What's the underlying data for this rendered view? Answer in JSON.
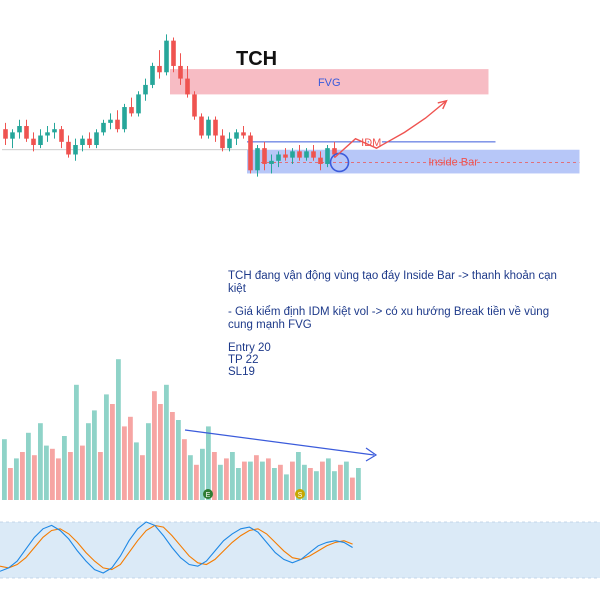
{
  "chart_data": {
    "type": "candlestick",
    "title": "TCH",
    "colors": {
      "up": "#26a69a",
      "down": "#ef5350",
      "fvg": "#f4a6b0",
      "inside_bar": "#9fb4f5",
      "annotation": "#3b5bdb",
      "arrow": "#ef5350",
      "stoch_k": "#1e88e5",
      "stoch_d": "#f57c00",
      "stoch_band": "#dbeaf7"
    },
    "ylim": [
      15.4,
      22.8
    ],
    "candles": [
      {
        "o": 19.6,
        "h": 19.8,
        "l": 19.1,
        "c": 19.3
      },
      {
        "o": 19.3,
        "h": 19.6,
        "l": 19.0,
        "c": 19.5
      },
      {
        "o": 19.5,
        "h": 19.9,
        "l": 19.3,
        "c": 19.7
      },
      {
        "o": 19.7,
        "h": 19.9,
        "l": 19.2,
        "c": 19.3
      },
      {
        "o": 19.3,
        "h": 19.5,
        "l": 18.9,
        "c": 19.1
      },
      {
        "o": 19.1,
        "h": 19.6,
        "l": 19.0,
        "c": 19.4
      },
      {
        "o": 19.4,
        "h": 19.7,
        "l": 19.2,
        "c": 19.5
      },
      {
        "o": 19.5,
        "h": 19.8,
        "l": 19.3,
        "c": 19.6
      },
      {
        "o": 19.6,
        "h": 19.7,
        "l": 19.0,
        "c": 19.2
      },
      {
        "o": 19.2,
        "h": 19.4,
        "l": 18.7,
        "c": 18.8
      },
      {
        "o": 18.8,
        "h": 19.3,
        "l": 18.6,
        "c": 19.1
      },
      {
        "o": 19.1,
        "h": 19.4,
        "l": 18.9,
        "c": 19.3
      },
      {
        "o": 19.3,
        "h": 19.5,
        "l": 19.0,
        "c": 19.1
      },
      {
        "o": 19.1,
        "h": 19.6,
        "l": 19.0,
        "c": 19.5
      },
      {
        "o": 19.5,
        "h": 19.9,
        "l": 19.4,
        "c": 19.8
      },
      {
        "o": 19.8,
        "h": 20.1,
        "l": 19.6,
        "c": 19.9
      },
      {
        "o": 19.9,
        "h": 20.2,
        "l": 19.5,
        "c": 19.6
      },
      {
        "o": 19.6,
        "h": 20.4,
        "l": 19.5,
        "c": 20.3
      },
      {
        "o": 20.3,
        "h": 20.6,
        "l": 20.0,
        "c": 20.1
      },
      {
        "o": 20.1,
        "h": 20.8,
        "l": 20.0,
        "c": 20.7
      },
      {
        "o": 20.7,
        "h": 21.2,
        "l": 20.5,
        "c": 21.0
      },
      {
        "o": 21.0,
        "h": 21.7,
        "l": 20.9,
        "c": 21.6
      },
      {
        "o": 21.6,
        "h": 22.1,
        "l": 21.2,
        "c": 21.4
      },
      {
        "o": 21.4,
        "h": 22.6,
        "l": 21.3,
        "c": 22.4
      },
      {
        "o": 22.4,
        "h": 22.5,
        "l": 21.4,
        "c": 21.6
      },
      {
        "o": 21.6,
        "h": 22.0,
        "l": 21.0,
        "c": 21.2
      },
      {
        "o": 21.2,
        "h": 21.6,
        "l": 20.6,
        "c": 20.7
      },
      {
        "o": 20.7,
        "h": 20.8,
        "l": 19.9,
        "c": 20.0
      },
      {
        "o": 20.0,
        "h": 20.1,
        "l": 19.3,
        "c": 19.4
      },
      {
        "o": 19.4,
        "h": 20.0,
        "l": 19.3,
        "c": 19.9
      },
      {
        "o": 19.9,
        "h": 20.0,
        "l": 19.2,
        "c": 19.4
      },
      {
        "o": 19.4,
        "h": 19.6,
        "l": 18.9,
        "c": 19.0
      },
      {
        "o": 19.0,
        "h": 19.5,
        "l": 18.9,
        "c": 19.3
      },
      {
        "o": 19.3,
        "h": 19.6,
        "l": 19.1,
        "c": 19.5
      },
      {
        "o": 19.5,
        "h": 19.7,
        "l": 19.3,
        "c": 19.4
      },
      {
        "o": 19.4,
        "h": 19.5,
        "l": 18.2,
        "c": 18.3
      },
      {
        "o": 18.3,
        "h": 19.1,
        "l": 18.1,
        "c": 19.0
      },
      {
        "o": 19.0,
        "h": 19.2,
        "l": 18.3,
        "c": 18.5
      },
      {
        "o": 18.5,
        "h": 18.8,
        "l": 18.2,
        "c": 18.6
      },
      {
        "o": 18.6,
        "h": 18.9,
        "l": 18.4,
        "c": 18.8
      },
      {
        "o": 18.8,
        "h": 19.0,
        "l": 18.6,
        "c": 18.7
      },
      {
        "o": 18.7,
        "h": 19.0,
        "l": 18.5,
        "c": 18.9
      },
      {
        "o": 18.9,
        "h": 19.1,
        "l": 18.6,
        "c": 18.7
      },
      {
        "o": 18.7,
        "h": 19.0,
        "l": 18.6,
        "c": 18.9
      },
      {
        "o": 18.9,
        "h": 19.1,
        "l": 18.6,
        "c": 18.7
      },
      {
        "o": 18.7,
        "h": 18.9,
        "l": 18.3,
        "c": 18.5
      },
      {
        "o": 18.5,
        "h": 19.1,
        "l": 18.4,
        "c": 19.0
      },
      {
        "o": 19.0,
        "h": 19.2,
        "l": 18.7,
        "c": 18.8
      }
    ],
    "zones": [
      {
        "name": "FVG",
        "label": "FVG",
        "y_low": 20.7,
        "y_high": 21.5,
        "from_index": 24,
        "to_index": 69
      },
      {
        "name": "Inside Bar",
        "label": "Inside Bar",
        "y_low": 18.2,
        "y_high": 18.95,
        "from_index": 35,
        "to_index": 82
      }
    ],
    "levels": [
      {
        "name": "IDM",
        "label": "IDM",
        "value": 19.2,
        "from_index": 35,
        "to_index": 70
      },
      {
        "name": "base",
        "label": "",
        "value": 18.95,
        "from_index": 0,
        "to_index": 35
      },
      {
        "name": "dashed",
        "label": "",
        "value": 18.55,
        "from_index": 37,
        "to_index": 82
      }
    ],
    "projection": [
      [
        47,
        18.7
      ],
      [
        50,
        19.3
      ],
      [
        53,
        19.0
      ],
      [
        57,
        19.5
      ],
      [
        60,
        19.95
      ],
      [
        63,
        20.5
      ]
    ],
    "volume": [
      38,
      20,
      26,
      30,
      42,
      28,
      48,
      34,
      32,
      26,
      40,
      30,
      72,
      34,
      48,
      56,
      30,
      66,
      60,
      88,
      46,
      52,
      36,
      28,
      48,
      68,
      60,
      72,
      55,
      50,
      38,
      28,
      22,
      32,
      46,
      30,
      22,
      26,
      30,
      20,
      24,
      24,
      28,
      24,
      26,
      20,
      22,
      16,
      24,
      30,
      22,
      20,
      18,
      24,
      26,
      18,
      22,
      24,
      14,
      20
    ],
    "volume_dir": [
      "u",
      "d",
      "u",
      "d",
      "u",
      "d",
      "u",
      "u",
      "d",
      "d",
      "u",
      "d",
      "u",
      "d",
      "u",
      "u",
      "d",
      "u",
      "d",
      "u",
      "d",
      "d",
      "u",
      "d",
      "u",
      "d",
      "d",
      "u",
      "d",
      "u",
      "d",
      "u",
      "d",
      "u",
      "u",
      "d",
      "u",
      "d",
      "u",
      "u",
      "d",
      "u",
      "d",
      "u",
      "d",
      "u",
      "d",
      "u",
      "d",
      "u",
      "u",
      "d",
      "u",
      "d",
      "u",
      "u",
      "d",
      "u",
      "d",
      "u"
    ],
    "stochastic": {
      "k": [
        22,
        26,
        34,
        48,
        62,
        72,
        76,
        70,
        60,
        46,
        34,
        24,
        20,
        26,
        40,
        58,
        72,
        80,
        76,
        64,
        50,
        38,
        30,
        28,
        34,
        46,
        58,
        66,
        72,
        74,
        68,
        56,
        44,
        36,
        32,
        36,
        44,
        52,
        56,
        58,
        56,
        50
      ],
      "d": [
        28,
        26,
        30,
        38,
        50,
        62,
        70,
        72,
        66,
        56,
        44,
        34,
        26,
        24,
        30,
        44,
        58,
        70,
        76,
        74,
        64,
        52,
        40,
        32,
        30,
        36,
        46,
        56,
        64,
        70,
        72,
        66,
        56,
        46,
        38,
        36,
        40,
        46,
        52,
        56,
        58,
        54
      ]
    },
    "notes": [
      "TCH đang vận động vùng tạo đáy Inside Bar -> thanh khoản cạn kiệt",
      "- Giá kiểm định IDM kiệt vol -> có xu hướng Break tiền về vùng cung mạnh FVG",
      "Entry 20",
      "TP 22",
      "SL19"
    ],
    "volume_markers": [
      "E",
      "S"
    ]
  }
}
